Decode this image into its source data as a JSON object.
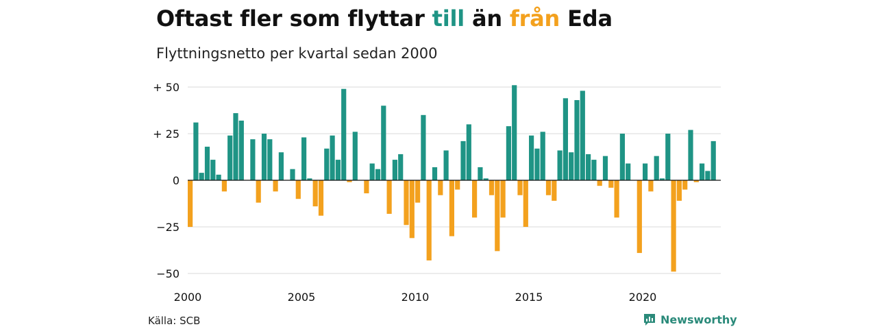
{
  "title": {
    "part1": "Oftast fler som flyttar ",
    "part2": "till",
    "part3": " än ",
    "part4": "från",
    "part5": " Eda"
  },
  "subtitle": "Flyttningsnetto per kvartal sedan 2000",
  "source": "Källa: SCB",
  "brand": "Newsworthy",
  "colors": {
    "positive": "#1f9485",
    "negative": "#f3a11e",
    "title_till": "#1f9485",
    "title_fran": "#f3a11e",
    "grid": "#d9d9d9",
    "zero_line": "#111111"
  },
  "chart_data": {
    "type": "bar",
    "xlabel": "",
    "ylabel": "",
    "ylim": [
      -55,
      55
    ],
    "grid": true,
    "x_start": "2000 Q1",
    "y_ticks": [
      {
        "value": 50,
        "label": "+ 50"
      },
      {
        "value": 25,
        "label": "+ 25"
      },
      {
        "value": 0,
        "label": "0"
      },
      {
        "value": -25,
        "label": "−25"
      },
      {
        "value": -50,
        "label": "−50"
      }
    ],
    "x_ticks": [
      {
        "year": 2000,
        "label": "2000"
      },
      {
        "year": 2005,
        "label": "2005"
      },
      {
        "year": 2010,
        "label": "2010"
      },
      {
        "year": 2015,
        "label": "2015"
      },
      {
        "year": 2020,
        "label": "2020"
      }
    ],
    "values": [
      -25,
      31,
      4,
      18,
      11,
      3,
      -6,
      24,
      36,
      32,
      0,
      22,
      -12,
      25,
      22,
      -6,
      15,
      0,
      6,
      -10,
      23,
      1,
      -14,
      -19,
      17,
      24,
      11,
      49,
      -1,
      26,
      0,
      -7,
      9,
      6,
      40,
      -18,
      11,
      14,
      -24,
      -31,
      -12,
      35,
      -43,
      7,
      -8,
      16,
      -30,
      -5,
      21,
      30,
      -20,
      7,
      1,
      -8,
      -38,
      -20,
      29,
      51,
      -8,
      -25,
      24,
      17,
      26,
      -8,
      -11,
      16,
      44,
      15,
      43,
      48,
      14,
      11,
      -3,
      13,
      -4,
      -20,
      25,
      9,
      0,
      -39,
      9,
      -6,
      13,
      1,
      25,
      -49,
      -11,
      -5,
      27,
      -1,
      9,
      5,
      21
    ]
  }
}
